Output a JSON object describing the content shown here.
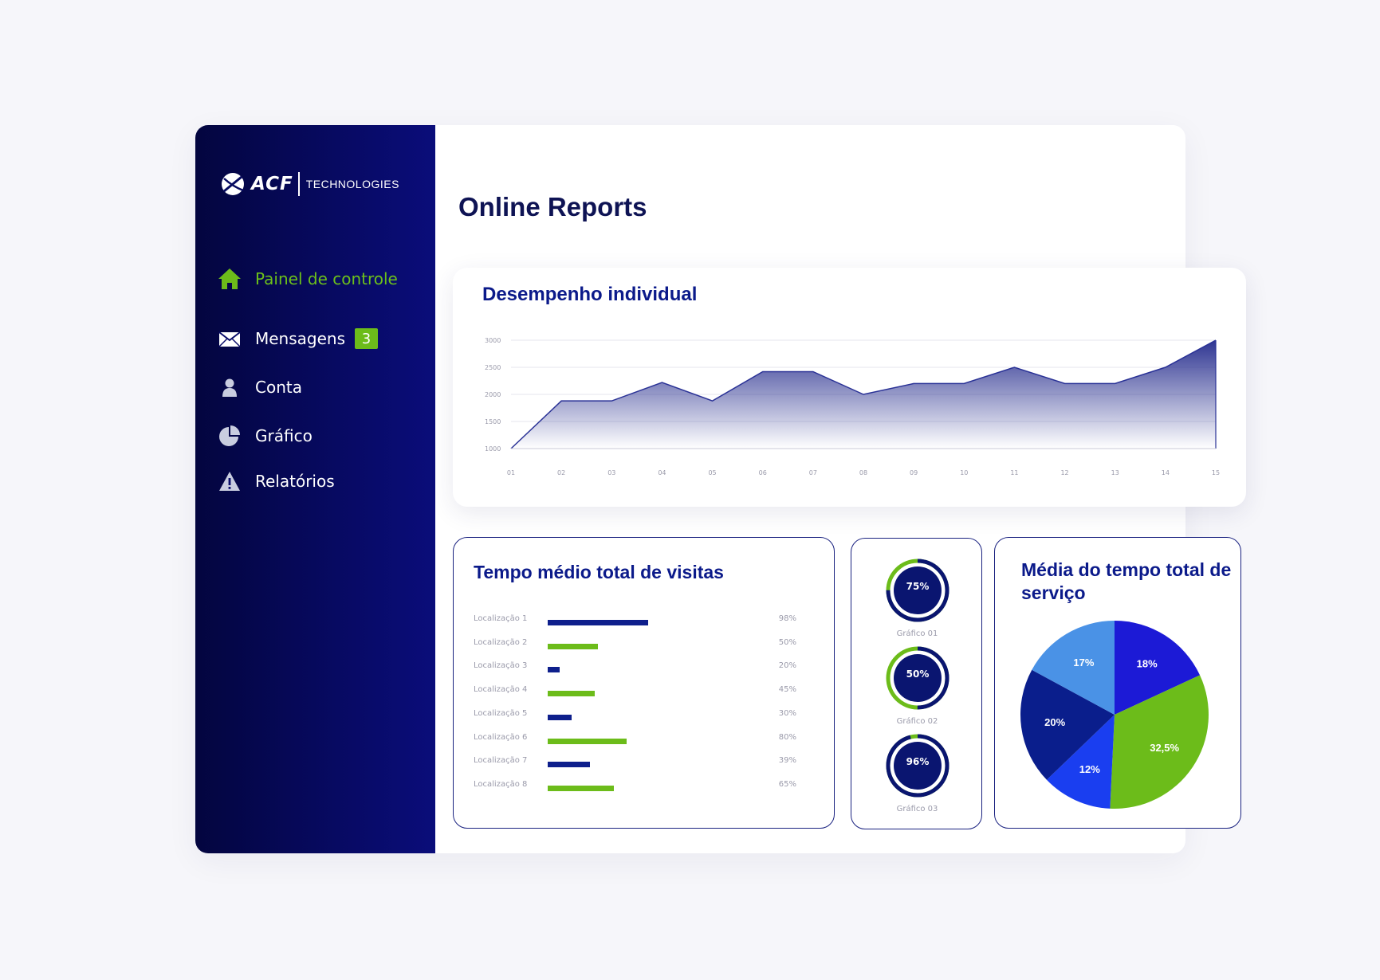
{
  "logo": {
    "word": "ACF",
    "tech": "TECHNOLOGIES"
  },
  "nav": {
    "items": [
      {
        "label": "Painel de controle",
        "icon": "home-icon",
        "active": true
      },
      {
        "label": "Mensagens",
        "icon": "envelope-icon",
        "badge": "3"
      },
      {
        "label": "Conta",
        "icon": "user-icon"
      },
      {
        "label": "Gráfico",
        "icon": "pie-chart-icon"
      },
      {
        "label": "Relatórios",
        "icon": "warning-icon"
      }
    ]
  },
  "page": {
    "title": "Online Reports"
  },
  "performance": {
    "title": "Desempenho individual"
  },
  "visits": {
    "title": "Tempo médio total de visitas",
    "rows": [
      {
        "label": "Localização 1",
        "value": "98%",
        "pct": 42,
        "color": "#0e1f8c"
      },
      {
        "label": "Localização 2",
        "value": "50%",
        "pct": 21,
        "color": "#6cbc1a"
      },
      {
        "label": "Localização 3",
        "value": "20%",
        "pct": 5,
        "color": "#0e1f8c"
      },
      {
        "label": "Localização 4",
        "value": "45%",
        "pct": 19.5,
        "color": "#6cbc1a"
      },
      {
        "label": "Localização 5",
        "value": "30%",
        "pct": 10,
        "color": "#0e1f8c"
      },
      {
        "label": "Localização 6",
        "value": "80%",
        "pct": 33,
        "color": "#6cbc1a"
      },
      {
        "label": "Localização 7",
        "value": "39%",
        "pct": 17.5,
        "color": "#0e1f8c"
      },
      {
        "label": "Localização 8",
        "value": "65%",
        "pct": 27.5,
        "color": "#6cbc1a"
      }
    ]
  },
  "donuts": [
    {
      "pct": "75%",
      "fraction": 0.75,
      "caption": "Gráfico 01"
    },
    {
      "pct": "50%",
      "fraction": 0.5,
      "caption": "Gráfico 02"
    },
    {
      "pct": "96%",
      "fraction": 0.96,
      "caption": "Gráfico 03"
    }
  ],
  "service": {
    "title": "Média do tempo total de serviço"
  },
  "colors": {
    "navy": "#0b1a8a",
    "green": "#6cbc1a",
    "sidebar": "#050846"
  },
  "chart_data": [
    {
      "type": "area",
      "title": "Desempenho individual",
      "x": [
        "01",
        "02",
        "03",
        "04",
        "05",
        "06",
        "07",
        "08",
        "09",
        "10",
        "11",
        "12",
        "13",
        "14",
        "15"
      ],
      "series": [
        {
          "values": [
            1000,
            1880,
            1880,
            2220,
            1880,
            2420,
            2420,
            2000,
            2200,
            2200,
            2500,
            2200,
            2200,
            2500,
            3000
          ]
        }
      ],
      "yticks": [
        "3000",
        "2500",
        "2000",
        "1500",
        "1000"
      ],
      "ylim": [
        1000,
        3000
      ],
      "grid": true
    },
    {
      "type": "bar",
      "title": "Tempo médio total de visitas",
      "categories": [
        "Localização 1",
        "Localização 2",
        "Localização 3",
        "Localização 4",
        "Localização 5",
        "Localização 6",
        "Localização 7",
        "Localização 8"
      ],
      "values": [
        98,
        50,
        20,
        45,
        30,
        80,
        39,
        65
      ]
    },
    {
      "type": "pie",
      "title": "Média do tempo total de serviço",
      "slices": [
        {
          "label": "18%",
          "value": 18,
          "color": "#1c1ad6"
        },
        {
          "label": "32,5%",
          "value": 32.5,
          "color": "#6cbc1a"
        },
        {
          "label": "12%",
          "value": 12,
          "color": "#1a3ef0"
        },
        {
          "label": "20%",
          "value": 20,
          "color": "#0a1e8c"
        },
        {
          "label": "17%",
          "value": 17,
          "color": "#4a92e6"
        }
      ]
    }
  ]
}
